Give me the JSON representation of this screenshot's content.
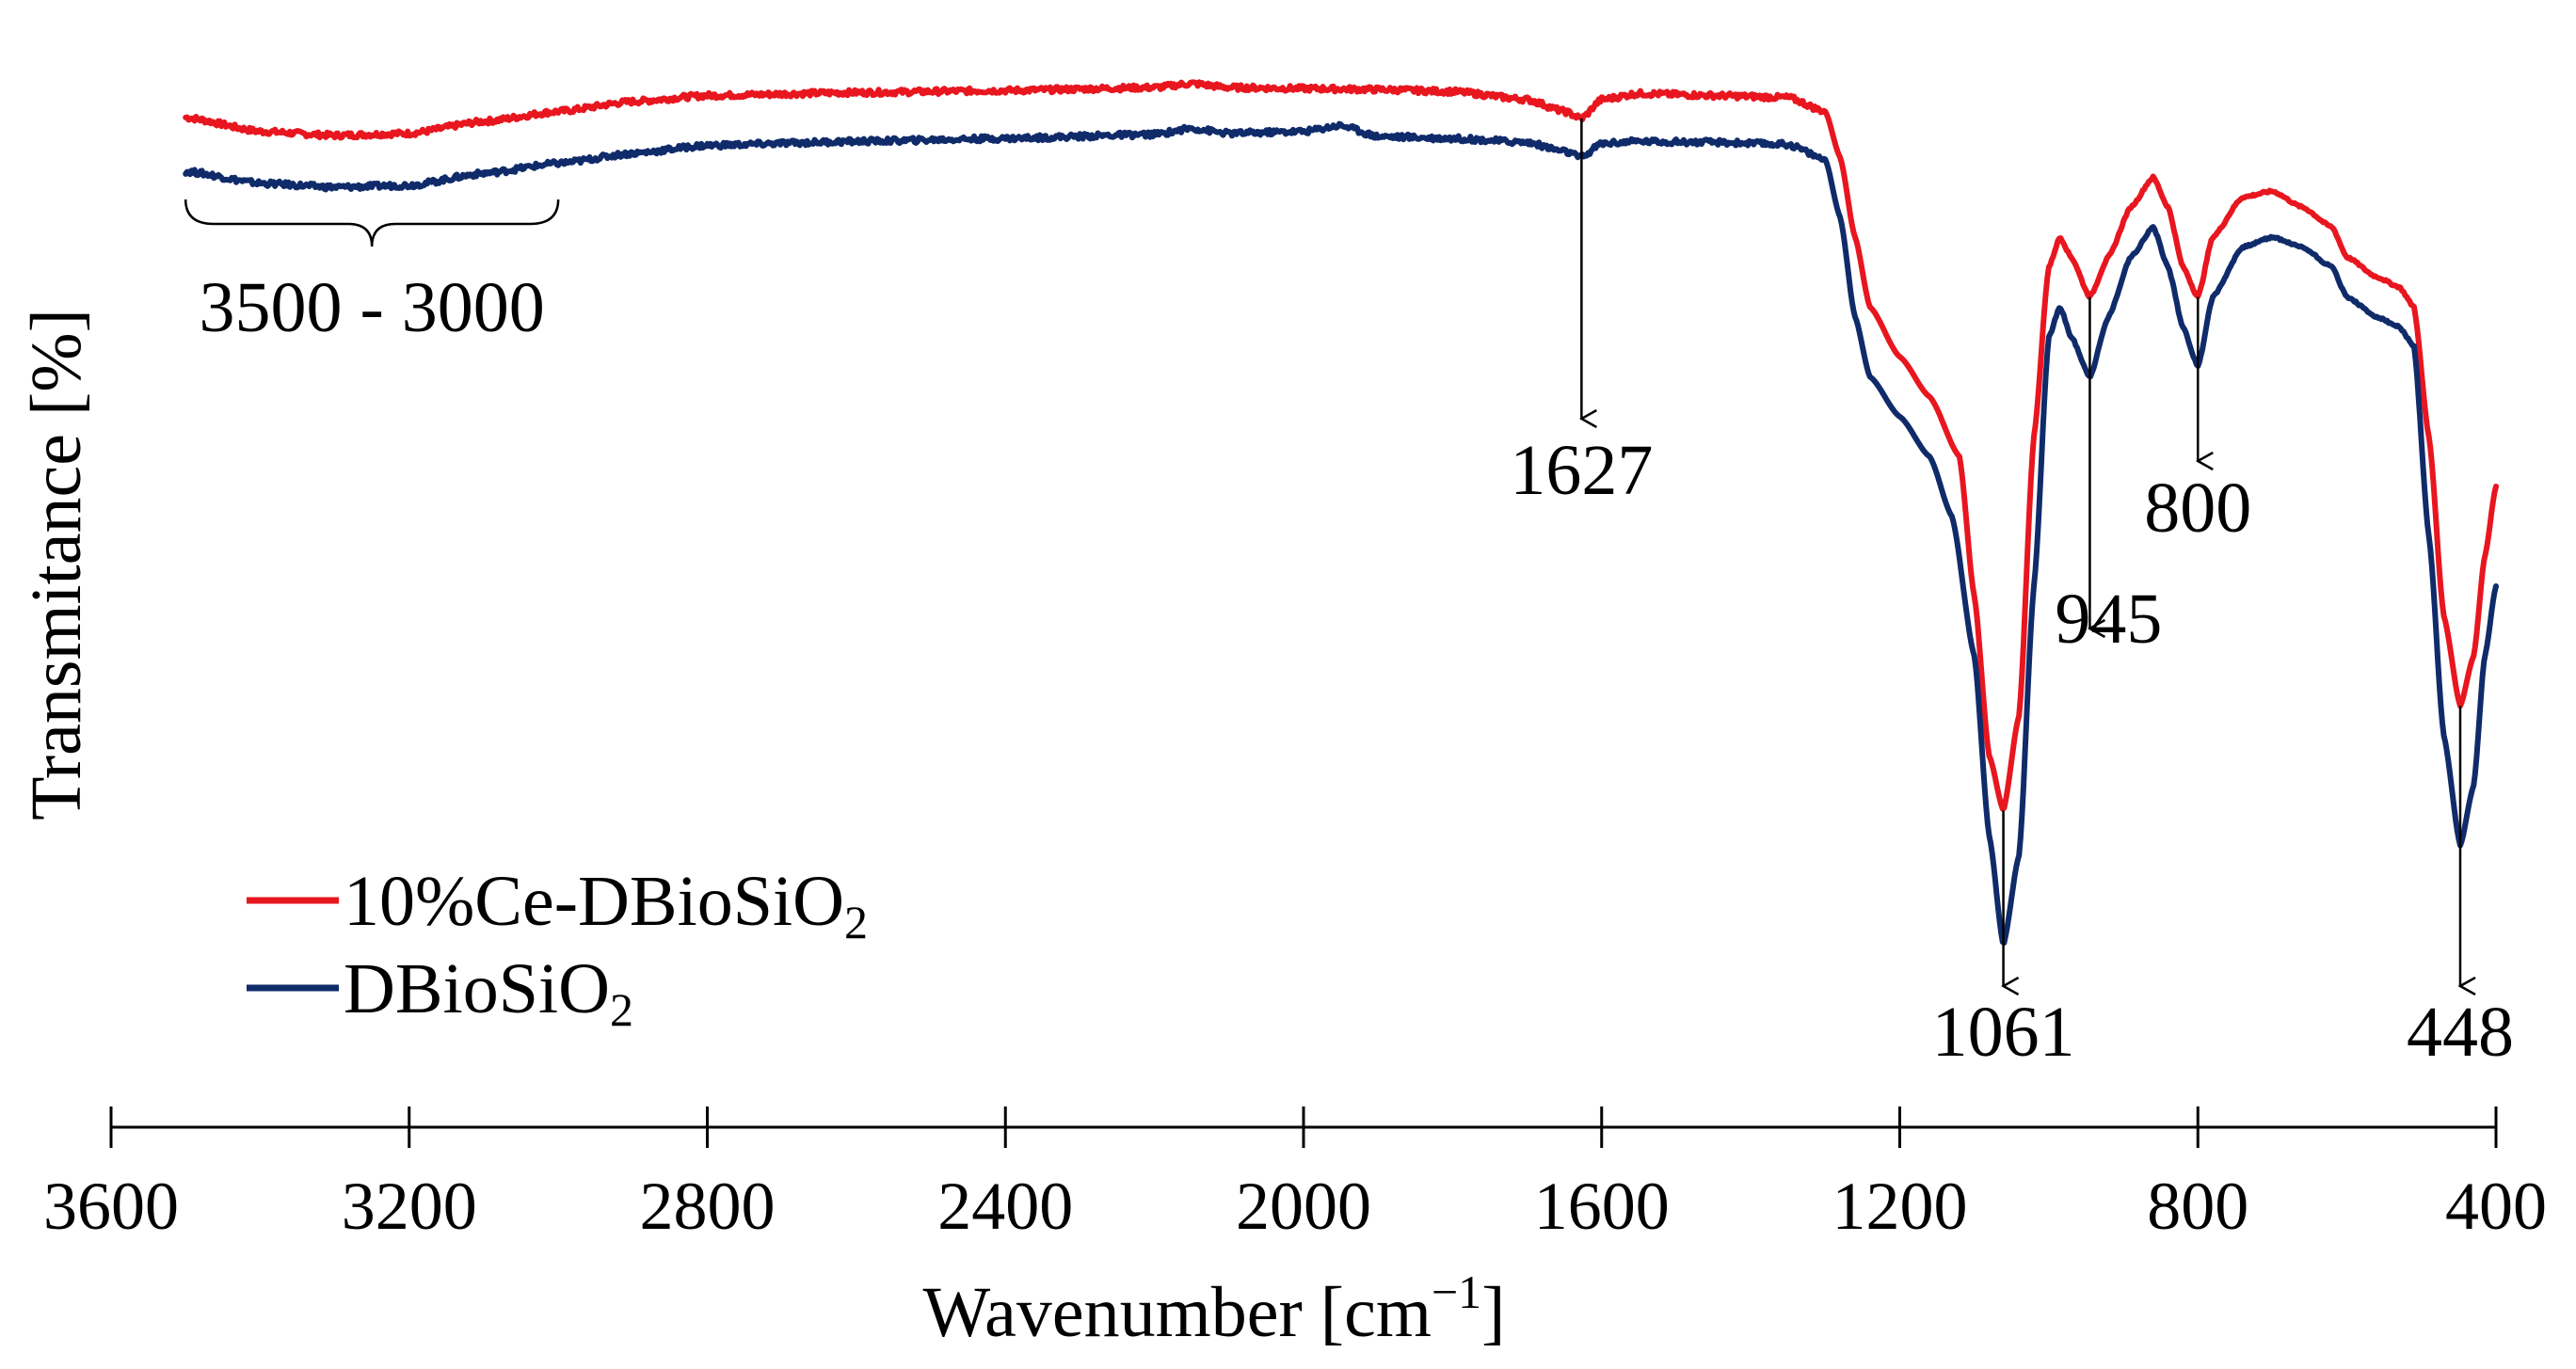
{
  "chart_data": {
    "type": "line",
    "title": "",
    "xlabel": "Wavenumber [cm",
    "xlabel_sup": "−1",
    "xlabel_close": "]",
    "ylabel": "Transmitance [%]",
    "xlim": [
      3600,
      400
    ],
    "ylim": [
      0,
      100
    ],
    "x_ticks": [
      3600,
      3200,
      2800,
      2400,
      2000,
      1600,
      1200,
      800,
      400
    ],
    "x_tick_labels": [
      "3600",
      "3200",
      "2800",
      "2400",
      "2000",
      "1600",
      "1200",
      "800",
      "400"
    ],
    "grid": false,
    "legend_position": "bottom-left",
    "series": [
      {
        "name": "10%Ce-DBioSiO",
        "name_sub": "2",
        "color": "#e8161f",
        "points": [
          [
            3500,
            92.0
          ],
          [
            3400,
            90.6
          ],
          [
            3300,
            90.2
          ],
          [
            3200,
            90.4
          ],
          [
            3100,
            91.6
          ],
          [
            3000,
            92.6
          ],
          [
            2900,
            93.6
          ],
          [
            2800,
            94.2
          ],
          [
            2600,
            94.5
          ],
          [
            2400,
            94.7
          ],
          [
            2200,
            95.0
          ],
          [
            2150,
            95.4
          ],
          [
            2100,
            95.0
          ],
          [
            2000,
            94.9
          ],
          [
            1900,
            94.8
          ],
          [
            1800,
            94.6
          ],
          [
            1700,
            93.8
          ],
          [
            1650,
            92.6
          ],
          [
            1627,
            91.9
          ],
          [
            1600,
            93.8
          ],
          [
            1550,
            94.4
          ],
          [
            1450,
            94.2
          ],
          [
            1350,
            94.0
          ],
          [
            1300,
            92.6
          ],
          [
            1280,
            88.0
          ],
          [
            1260,
            80.0
          ],
          [
            1240,
            73.0
          ],
          [
            1200,
            68.0
          ],
          [
            1160,
            64.0
          ],
          [
            1120,
            58.0
          ],
          [
            1100,
            44.0
          ],
          [
            1080,
            28.0
          ],
          [
            1061,
            22.5
          ],
          [
            1040,
            32.0
          ],
          [
            1020,
            60.0
          ],
          [
            1000,
            77.0
          ],
          [
            985,
            80.0
          ],
          [
            970,
            78.0
          ],
          [
            945,
            74.0
          ],
          [
            920,
            78.0
          ],
          [
            890,
            83.0
          ],
          [
            860,
            86.0
          ],
          [
            840,
            83.0
          ],
          [
            820,
            77.0
          ],
          [
            800,
            74.0
          ],
          [
            780,
            80.0
          ],
          [
            740,
            84.0
          ],
          [
            700,
            84.6
          ],
          [
            660,
            83.0
          ],
          [
            620,
            81.0
          ],
          [
            600,
            78.0
          ],
          [
            560,
            76.0
          ],
          [
            530,
            75.0
          ],
          [
            510,
            73.0
          ],
          [
            490,
            60.0
          ],
          [
            470,
            42.0
          ],
          [
            448,
            33.0
          ],
          [
            430,
            38.0
          ],
          [
            415,
            48.0
          ],
          [
            400,
            55.0
          ]
        ]
      },
      {
        "name": "DBioSiO",
        "name_sub": "2",
        "color": "#102b6a",
        "points": [
          [
            3500,
            86.6
          ],
          [
            3400,
            85.4
          ],
          [
            3300,
            85.0
          ],
          [
            3200,
            85.2
          ],
          [
            3100,
            86.4
          ],
          [
            3000,
            87.4
          ],
          [
            2900,
            88.4
          ],
          [
            2800,
            89.2
          ],
          [
            2600,
            89.6
          ],
          [
            2400,
            89.9
          ],
          [
            2200,
            90.3
          ],
          [
            2150,
            90.9
          ],
          [
            2100,
            90.4
          ],
          [
            2000,
            90.6
          ],
          [
            1950,
            91.2
          ],
          [
            1900,
            90.1
          ],
          [
            1800,
            89.9
          ],
          [
            1700,
            89.5
          ],
          [
            1650,
            88.6
          ],
          [
            1627,
            88.0
          ],
          [
            1600,
            89.4
          ],
          [
            1550,
            89.6
          ],
          [
            1450,
            89.5
          ],
          [
            1350,
            89.3
          ],
          [
            1300,
            87.8
          ],
          [
            1280,
            82.0
          ],
          [
            1260,
            72.0
          ],
          [
            1240,
            66.0
          ],
          [
            1200,
            62.0
          ],
          [
            1160,
            58.0
          ],
          [
            1130,
            52.0
          ],
          [
            1100,
            38.0
          ],
          [
            1080,
            20.0
          ],
          [
            1061,
            9.0
          ],
          [
            1040,
            18.0
          ],
          [
            1020,
            45.0
          ],
          [
            1000,
            70.0
          ],
          [
            985,
            73.0
          ],
          [
            970,
            70.0
          ],
          [
            945,
            66.0
          ],
          [
            920,
            72.0
          ],
          [
            890,
            78.0
          ],
          [
            860,
            81.0
          ],
          [
            840,
            77.0
          ],
          [
            820,
            71.0
          ],
          [
            800,
            67.0
          ],
          [
            780,
            74.0
          ],
          [
            740,
            79.0
          ],
          [
            700,
            80.0
          ],
          [
            660,
            79.0
          ],
          [
            620,
            77.0
          ],
          [
            600,
            74.0
          ],
          [
            560,
            72.0
          ],
          [
            530,
            71.0
          ],
          [
            510,
            69.0
          ],
          [
            490,
            50.0
          ],
          [
            470,
            30.0
          ],
          [
            448,
            19.0
          ],
          [
            430,
            25.0
          ],
          [
            415,
            38.0
          ],
          [
            400,
            45.0
          ]
        ]
      }
    ],
    "annotations": [
      {
        "text": "3500 - 3000",
        "type": "brace",
        "x_range": [
          3500,
          3000
        ]
      },
      {
        "text": "1627",
        "type": "arrow",
        "x": 1627
      },
      {
        "text": "1061",
        "type": "arrow",
        "x": 1061
      },
      {
        "text": "945",
        "type": "arrow",
        "x": 945
      },
      {
        "text": "800",
        "type": "arrow",
        "x": 800
      },
      {
        "text": "448",
        "type": "arrow",
        "x": 448
      }
    ]
  }
}
